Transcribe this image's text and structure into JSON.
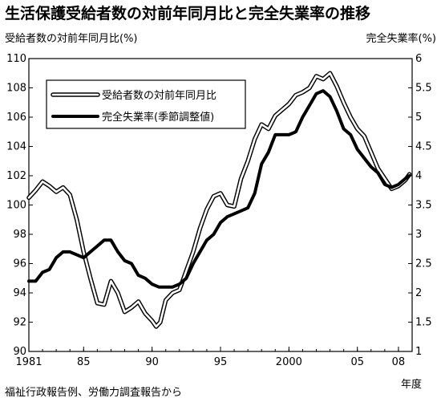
{
  "title": "生活保護受給者数の対前年同月比と完全失業率の推移",
  "source": "福祉行政報告例、労働力調査報告から",
  "chart_data": {
    "type": "line",
    "title": "生活保護受給者数の対前年同月比と完全失業率の推移",
    "left_axis": {
      "label": "受給者数の対前年同月比(%)",
      "ylim": [
        90,
        110
      ],
      "ticks": [
        90,
        92,
        94,
        96,
        98,
        100,
        102,
        104,
        106,
        108,
        110
      ]
    },
    "right_axis": {
      "label": "完全失業率(%)",
      "ylim": [
        1,
        6
      ],
      "ticks": [
        1,
        1.5,
        2,
        2.5,
        3,
        3.5,
        4,
        4.5,
        5,
        5.5,
        6
      ]
    },
    "x_axis": {
      "label": "年度",
      "xlim": [
        1981,
        2009
      ],
      "tick_positions": [
        1981,
        1985,
        1990,
        1995,
        2000,
        2005,
        2008
      ],
      "tick_labels": [
        "1981",
        "85",
        "90",
        "95",
        "2000",
        "05",
        "08"
      ]
    },
    "grid": false,
    "legend_position": "top-left",
    "series": [
      {
        "name": "受給者数の対前年同月比",
        "axis": "left",
        "style": "double-outline",
        "x": [
          1981,
          1981.5,
          1982,
          1982.5,
          1983,
          1983.5,
          1984,
          1984.5,
          1985,
          1985.5,
          1986,
          1986.5,
          1987,
          1987.5,
          1988,
          1988.5,
          1989,
          1989.5,
          1990,
          1990.3,
          1990.6,
          1991,
          1991.5,
          1992,
          1992.5,
          1993,
          1993.5,
          1994,
          1994.5,
          1995,
          1995.5,
          1996,
          1996.5,
          1997,
          1997.5,
          1998,
          1998.5,
          1999,
          1999.5,
          2000,
          2000.5,
          2001,
          2001.5,
          2002,
          2002.5,
          2003,
          2003.5,
          2004,
          2004.5,
          2005,
          2005.5,
          2006,
          2006.5,
          2007,
          2007.5,
          2008,
          2008.5,
          2008.8
        ],
        "values": [
          100.5,
          101.0,
          101.6,
          101.3,
          100.9,
          101.2,
          100.7,
          99.0,
          96.8,
          95.0,
          93.3,
          93.2,
          94.8,
          94.0,
          92.7,
          93.0,
          93.4,
          92.6,
          92.1,
          91.7,
          92.0,
          93.5,
          94.0,
          94.2,
          95.5,
          96.8,
          98.4,
          99.7,
          100.6,
          100.8,
          100.0,
          99.9,
          101.8,
          103.0,
          104.5,
          105.5,
          105.2,
          106.1,
          106.5,
          106.9,
          107.5,
          107.7,
          108.0,
          108.8,
          108.6,
          109.0,
          108.1,
          107.0,
          106.0,
          105.2,
          104.7,
          103.6,
          102.5,
          101.8,
          101.1,
          101.3,
          101.7,
          102.1
        ]
      },
      {
        "name": "完全失業率(季節調整値)",
        "axis": "right",
        "style": "thick-solid",
        "x": [
          1981,
          1981.5,
          1982,
          1982.5,
          1983,
          1983.5,
          1984,
          1984.5,
          1985,
          1985.5,
          1986,
          1986.5,
          1987,
          1987.5,
          1988,
          1988.5,
          1989,
          1989.5,
          1990,
          1990.5,
          1991,
          1991.5,
          1992,
          1992.5,
          1993,
          1993.5,
          1994,
          1994.5,
          1995,
          1995.5,
          1996,
          1996.5,
          1997,
          1997.5,
          1998,
          1998.5,
          1999,
          1999.5,
          2000,
          2000.5,
          2001,
          2001.5,
          2002,
          2002.5,
          2003,
          2003.5,
          2004,
          2004.5,
          2005,
          2005.5,
          2006,
          2006.5,
          2007,
          2007.5,
          2008,
          2008.5,
          2008.8
        ],
        "values": [
          2.2,
          2.2,
          2.35,
          2.4,
          2.6,
          2.7,
          2.7,
          2.65,
          2.6,
          2.7,
          2.8,
          2.9,
          2.9,
          2.7,
          2.55,
          2.5,
          2.3,
          2.25,
          2.15,
          2.1,
          2.1,
          2.1,
          2.15,
          2.25,
          2.5,
          2.7,
          2.9,
          3.0,
          3.2,
          3.3,
          3.35,
          3.4,
          3.45,
          3.7,
          4.2,
          4.4,
          4.7,
          4.7,
          4.7,
          4.75,
          5.0,
          5.2,
          5.4,
          5.45,
          5.35,
          5.1,
          4.8,
          4.7,
          4.45,
          4.3,
          4.15,
          4.05,
          3.85,
          3.8,
          3.85,
          3.95,
          4.0
        ]
      }
    ]
  }
}
